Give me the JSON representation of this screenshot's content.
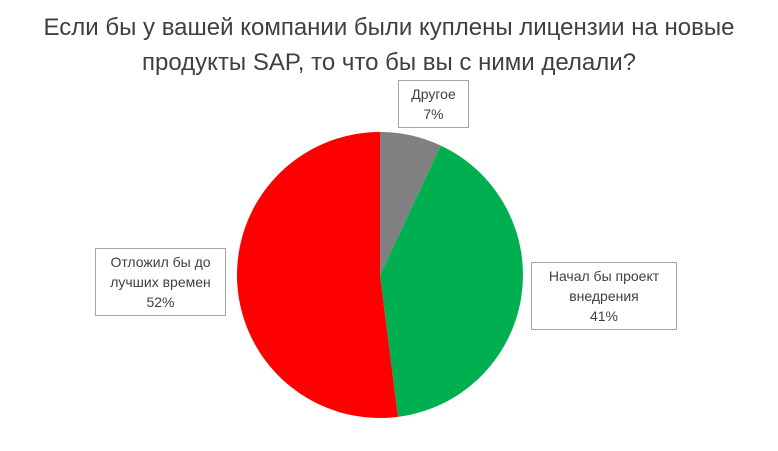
{
  "chart_data": {
    "type": "pie",
    "title": "Если бы у вашей компании были куплены лицензии на новые продукты SAP, то что бы вы с ними делали?",
    "categories": [
      "Другое",
      "Начал бы проект внедрения",
      "Отложил бы до лучших времен"
    ],
    "values": [
      7,
      41,
      52
    ],
    "value_labels": [
      "7%",
      "41%",
      "52%"
    ],
    "colors": [
      "#808080",
      "#00b050",
      "#ff0000"
    ]
  }
}
